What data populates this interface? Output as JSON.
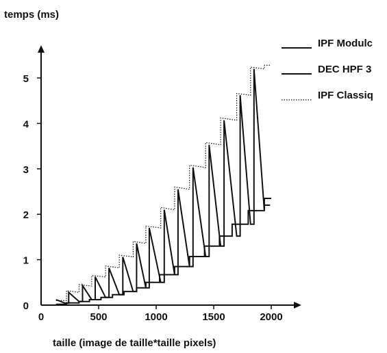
{
  "chart_data": {
    "type": "line",
    "ylabel": "temps (ms)",
    "xlabel": "taille (image de taille*taille pixels)",
    "xlim": [
      0,
      2100
    ],
    "ylim": [
      0,
      5.6
    ],
    "x_ticks": [
      0,
      500,
      1000,
      1500,
      2000
    ],
    "y_ticks": [
      0,
      1,
      2,
      3,
      4,
      5
    ],
    "grid": false,
    "legend": "top-right",
    "series": [
      {
        "name": "IPF Modulc",
        "line_style": "solid",
        "points": [
          [
            130,
            0.02
          ],
          [
            220,
            0.02
          ],
          [
            220,
            0.05
          ],
          [
            330,
            0.05
          ],
          [
            330,
            0.08
          ],
          [
            420,
            0.08
          ],
          [
            420,
            0.12
          ],
          [
            520,
            0.12
          ],
          [
            520,
            0.17
          ],
          [
            620,
            0.17
          ],
          [
            620,
            0.23
          ],
          [
            720,
            0.23
          ],
          [
            720,
            0.3
          ],
          [
            830,
            0.3
          ],
          [
            830,
            0.38
          ],
          [
            910,
            0.38
          ],
          [
            910,
            0.5
          ],
          [
            1030,
            0.5
          ],
          [
            1030,
            0.67
          ],
          [
            1160,
            0.67
          ],
          [
            1160,
            0.85
          ],
          [
            1290,
            0.85
          ],
          [
            1290,
            1.07
          ],
          [
            1420,
            1.07
          ],
          [
            1420,
            1.3
          ],
          [
            1550,
            1.3
          ],
          [
            1550,
            1.52
          ],
          [
            1660,
            1.52
          ],
          [
            1660,
            1.78
          ],
          [
            1800,
            1.78
          ],
          [
            1800,
            2.08
          ],
          [
            1940,
            2.08
          ],
          [
            1940,
            2.35
          ],
          [
            2000,
            2.35
          ]
        ]
      },
      {
        "name": "DEC HPF 3",
        "line_style": "solid",
        "points": [
          [
            130,
            0.12
          ],
          [
            210,
            0.04
          ],
          [
            240,
            0.04
          ],
          [
            240,
            0.28
          ],
          [
            330,
            0.08
          ],
          [
            360,
            0.08
          ],
          [
            360,
            0.43
          ],
          [
            440,
            0.12
          ],
          [
            470,
            0.12
          ],
          [
            470,
            0.62
          ],
          [
            560,
            0.17
          ],
          [
            590,
            0.17
          ],
          [
            590,
            0.82
          ],
          [
            680,
            0.23
          ],
          [
            710,
            0.23
          ],
          [
            710,
            1.06
          ],
          [
            800,
            0.3
          ],
          [
            830,
            0.3
          ],
          [
            830,
            1.36
          ],
          [
            910,
            0.38
          ],
          [
            940,
            0.38
          ],
          [
            940,
            1.7
          ],
          [
            1040,
            0.5
          ],
          [
            1070,
            0.5
          ],
          [
            1070,
            2.1
          ],
          [
            1160,
            0.67
          ],
          [
            1190,
            0.67
          ],
          [
            1190,
            2.55
          ],
          [
            1290,
            0.85
          ],
          [
            1320,
            0.85
          ],
          [
            1320,
            3.03
          ],
          [
            1430,
            1.07
          ],
          [
            1460,
            1.07
          ],
          [
            1460,
            3.53
          ],
          [
            1560,
            1.3
          ],
          [
            1590,
            1.3
          ],
          [
            1590,
            4.07
          ],
          [
            1700,
            1.52
          ],
          [
            1730,
            1.52
          ],
          [
            1730,
            4.62
          ],
          [
            1820,
            1.78
          ],
          [
            1850,
            1.78
          ],
          [
            1850,
            5.2
          ],
          [
            1940,
            2.08
          ],
          [
            1940,
            2.2
          ],
          [
            1990,
            2.2
          ]
        ]
      },
      {
        "name": "IPF Classiq",
        "line_style": "dotted",
        "points": [
          [
            130,
            0.1
          ],
          [
            220,
            0.1
          ],
          [
            220,
            0.32
          ],
          [
            330,
            0.28
          ],
          [
            330,
            0.45
          ],
          [
            440,
            0.42
          ],
          [
            440,
            0.65
          ],
          [
            560,
            0.62
          ],
          [
            560,
            0.86
          ],
          [
            680,
            0.82
          ],
          [
            680,
            1.1
          ],
          [
            800,
            1.06
          ],
          [
            800,
            1.4
          ],
          [
            910,
            1.36
          ],
          [
            910,
            1.74
          ],
          [
            1040,
            1.7
          ],
          [
            1040,
            2.15
          ],
          [
            1160,
            2.1
          ],
          [
            1160,
            2.6
          ],
          [
            1290,
            2.55
          ],
          [
            1290,
            3.08
          ],
          [
            1430,
            3.03
          ],
          [
            1430,
            3.58
          ],
          [
            1560,
            3.53
          ],
          [
            1560,
            4.12
          ],
          [
            1700,
            4.07
          ],
          [
            1700,
            4.66
          ],
          [
            1820,
            4.62
          ],
          [
            1820,
            5.24
          ],
          [
            1940,
            5.2
          ],
          [
            1940,
            5.28
          ],
          [
            2000,
            5.28
          ]
        ]
      }
    ]
  }
}
